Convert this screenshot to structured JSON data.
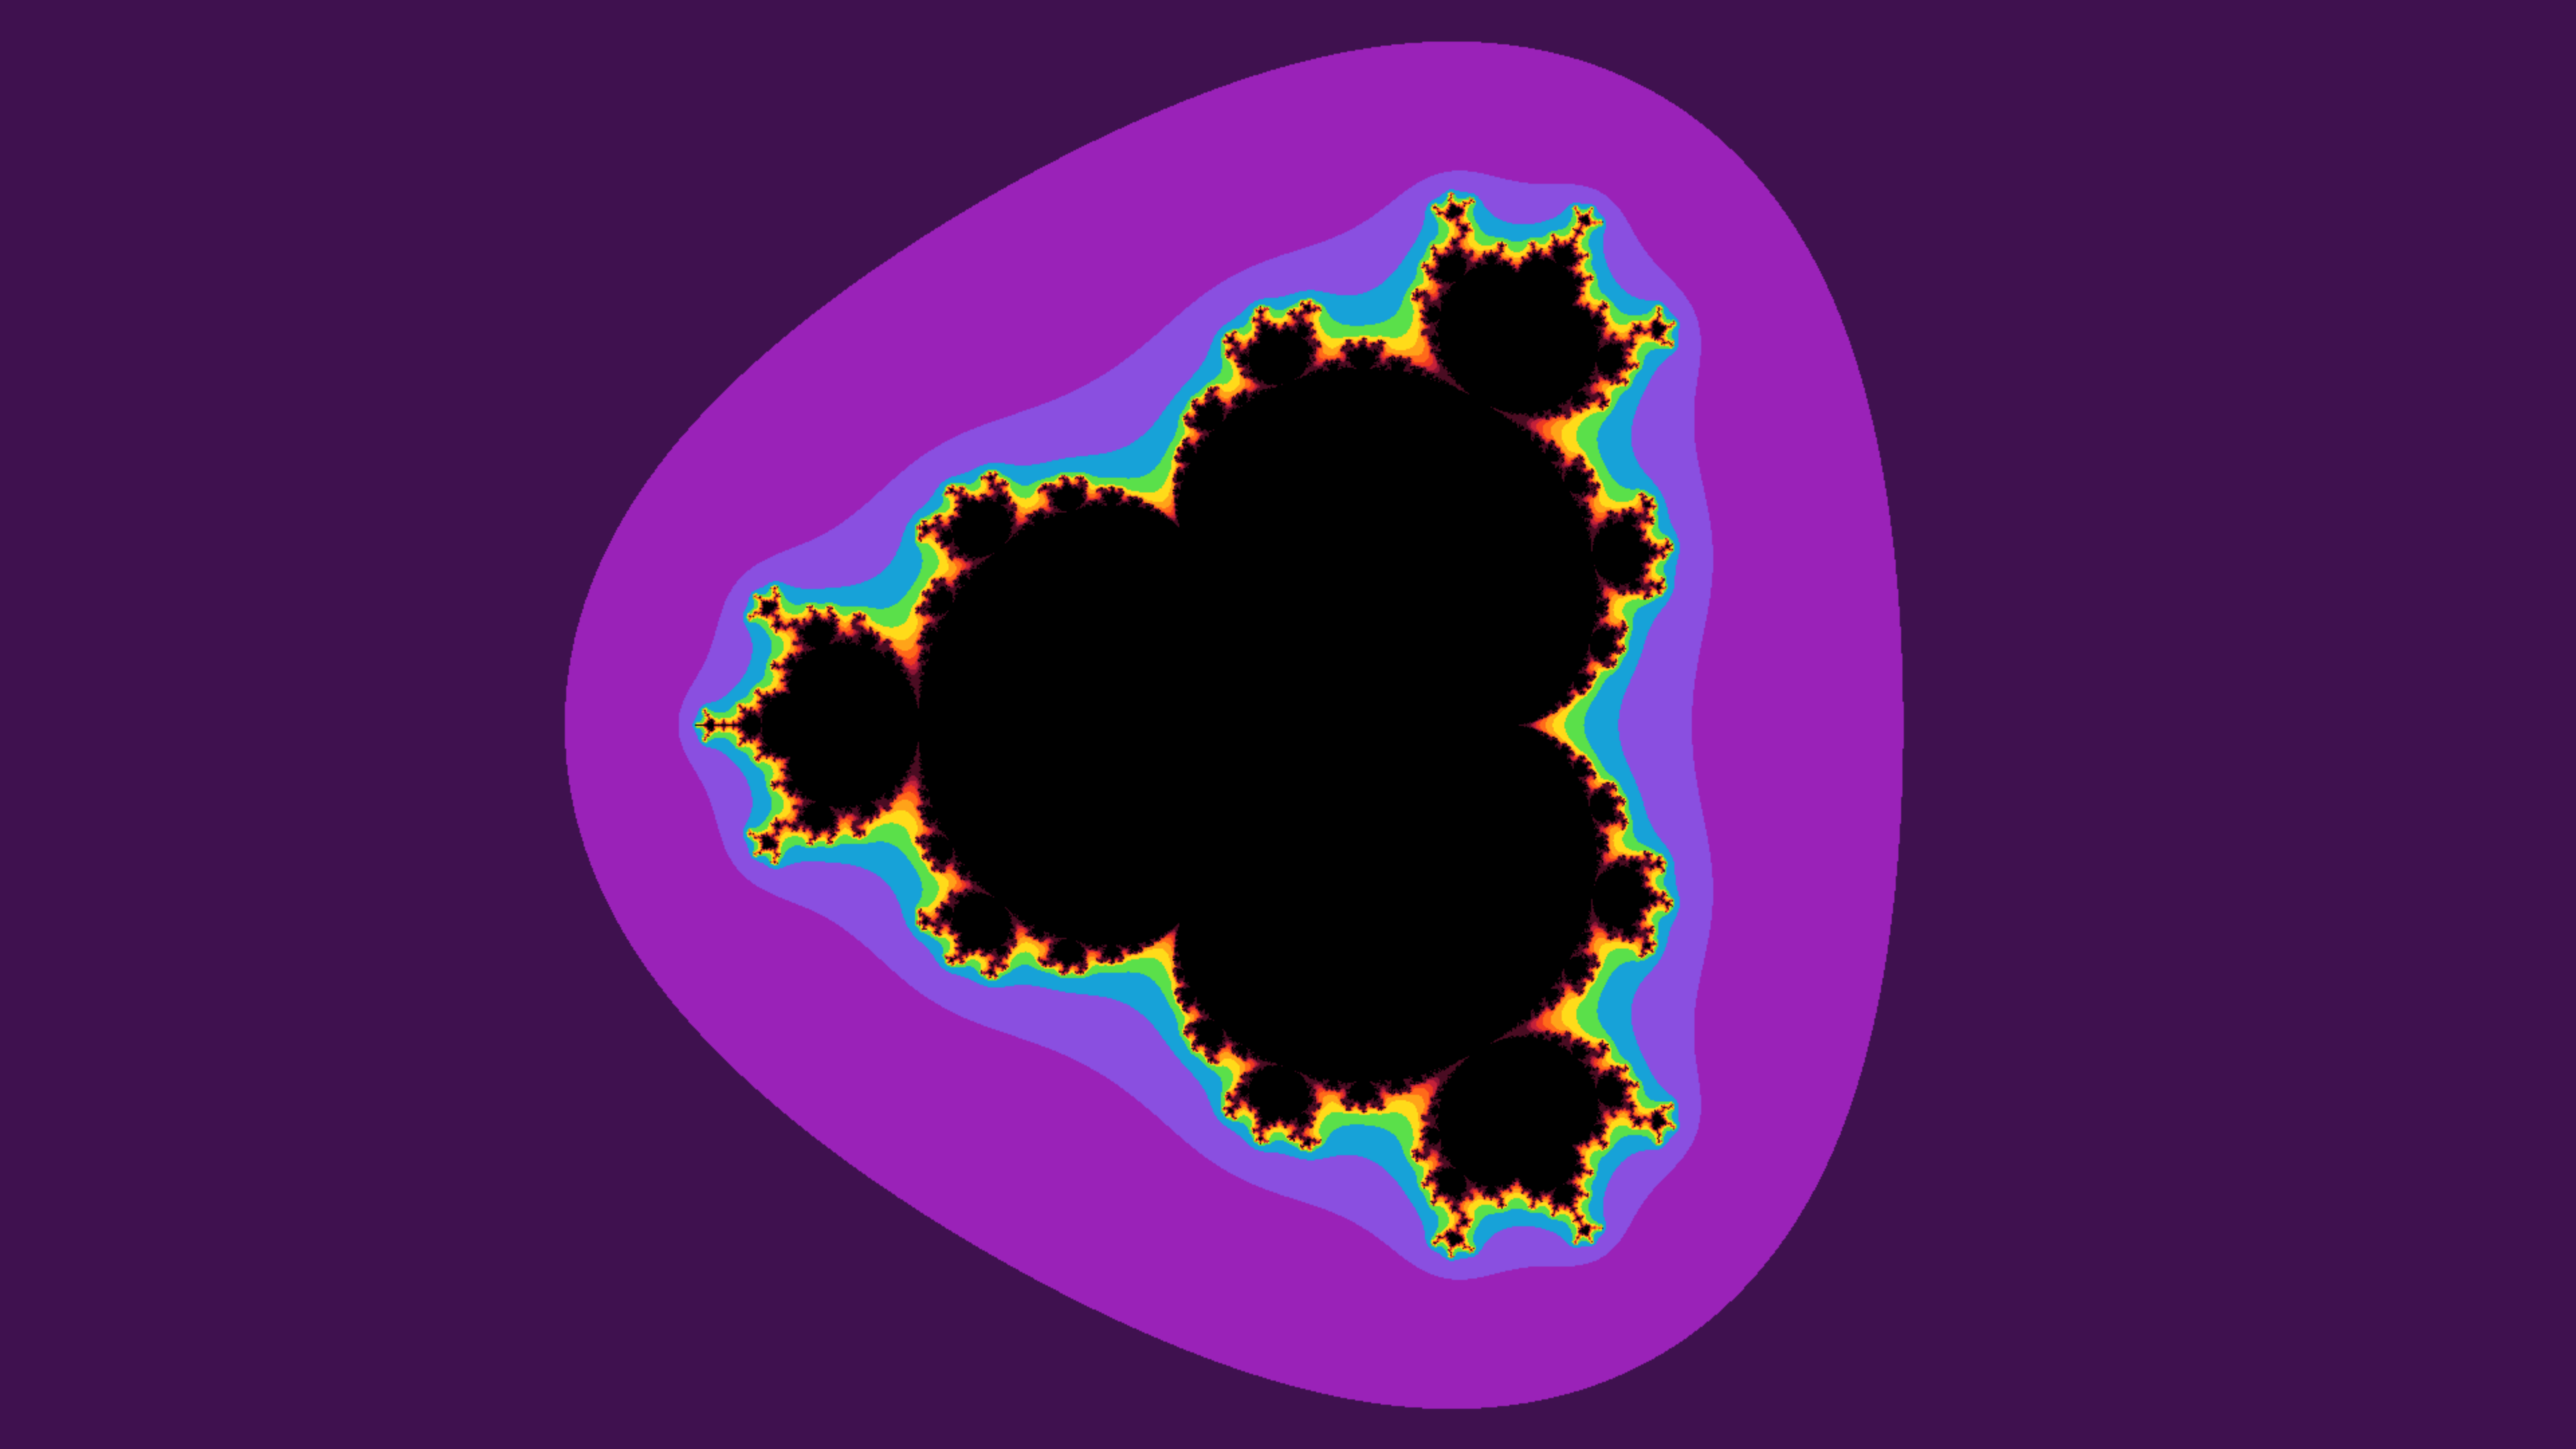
{
  "fractal": {
    "kind": "multibrot",
    "power": 4,
    "max_iterations": 60,
    "palette": {
      "background": "#0d0318",
      "bands": [
        "#0d0318",
        "#1d0a30",
        "#3f114f",
        "#9a22b8",
        "#8a4fe0",
        "#17a2d8",
        "#5ae04a",
        "#ffdb1a",
        "#ffa319",
        "#ff6a1a",
        "#f03a22",
        "#c4213a",
        "#8c1436",
        "#4a0c22"
      ],
      "interior": "#000000"
    }
  }
}
